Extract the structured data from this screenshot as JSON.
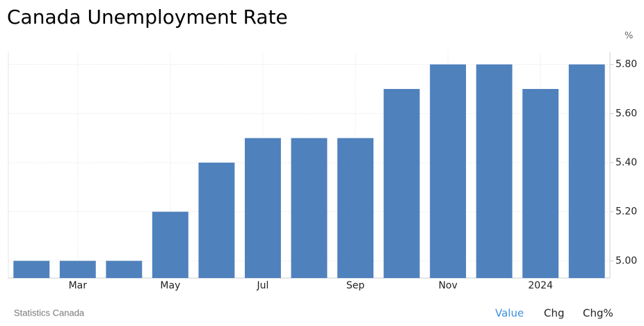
{
  "chart_data": {
    "type": "bar",
    "title": "Canada Unemployment Rate",
    "unit": "%",
    "categories": [
      null,
      "Mar",
      null,
      "May",
      null,
      "Jul",
      null,
      "Sep",
      null,
      "Nov",
      null,
      "2024",
      null
    ],
    "values": [
      5.0,
      5.0,
      5.0,
      5.2,
      5.4,
      5.5,
      5.5,
      5.5,
      5.7,
      5.8,
      5.8,
      5.7,
      5.8
    ],
    "color": "#4f81bd",
    "ylim": [
      4.93,
      5.85
    ],
    "yticks": [
      {
        "value": 5.0,
        "label": "5.00"
      },
      {
        "value": 5.2,
        "label": "5.20"
      },
      {
        "value": 5.4,
        "label": "5.40"
      },
      {
        "value": 5.6,
        "label": "5.60"
      },
      {
        "value": 5.8,
        "label": "5.80"
      }
    ],
    "grid": true,
    "source": "Statistics Canada",
    "buttons": [
      "Value",
      "Chg",
      "Chg%"
    ]
  }
}
